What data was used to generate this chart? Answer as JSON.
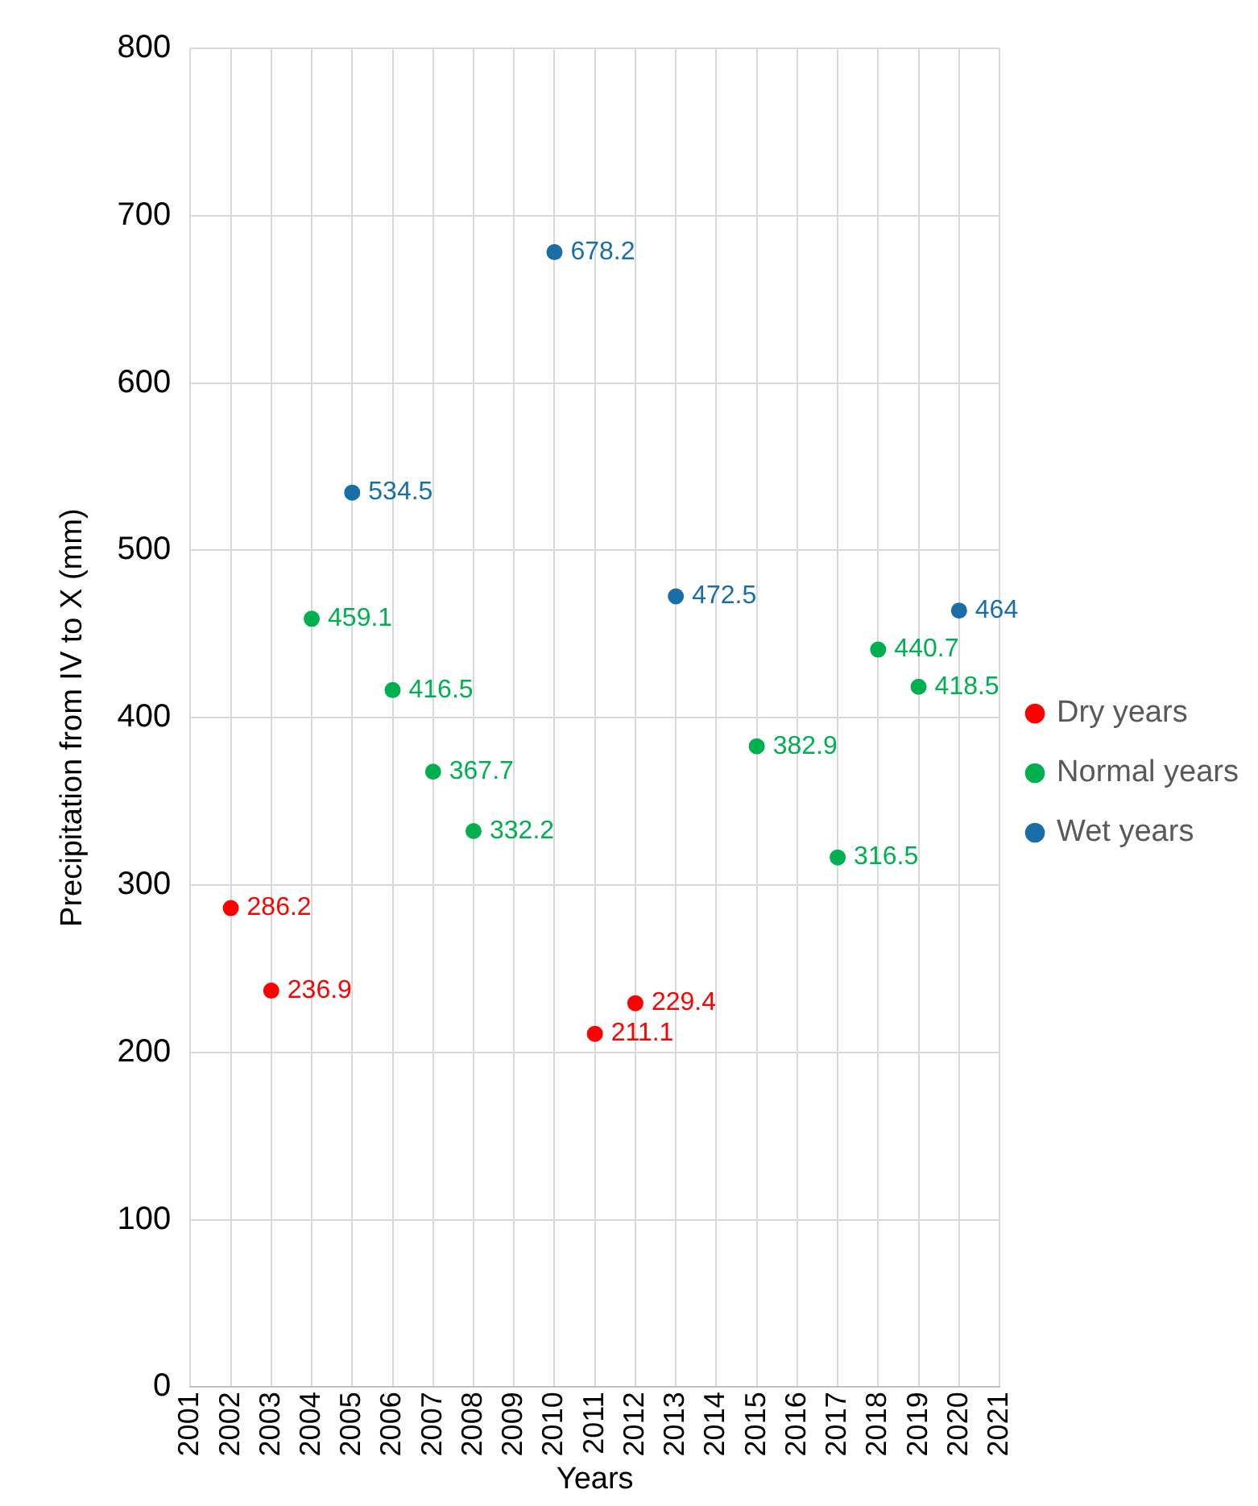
{
  "chart_data": {
    "type": "scatter",
    "xlabel": "Years",
    "ylabel": "Precipitation from IV to X (mm)",
    "xlim": [
      2001,
      2021
    ],
    "xticks": [
      2001,
      2002,
      2003,
      2004,
      2005,
      2006,
      2007,
      2008,
      2009,
      2010,
      2011,
      2012,
      2013,
      2014,
      2015,
      2016,
      2017,
      2018,
      2019,
      2020,
      2021
    ],
    "ylim": [
      0,
      800
    ],
    "yticks": [
      0,
      100,
      200,
      300,
      400,
      500,
      600,
      700,
      800
    ],
    "grid": true,
    "legend": "right",
    "marker": "circle",
    "data_labels": true,
    "series": [
      {
        "name": "Dry years",
        "color": "#ff0000",
        "x": [
          2002,
          2003,
          2011,
          2012
        ],
        "values": [
          286.2,
          236.9,
          211.1,
          229.4
        ]
      },
      {
        "name": "Normal years",
        "color": "#00b050",
        "x": [
          2004,
          2006,
          2007,
          2008,
          2015,
          2017,
          2018,
          2019
        ],
        "values": [
          459.1,
          416.5,
          367.7,
          332.2,
          382.9,
          316.5,
          440.7,
          418.5
        ]
      },
      {
        "name": "Wet years",
        "color": "#1a6ea8",
        "x": [
          2005,
          2010,
          2013,
          2020
        ],
        "values": [
          534.5,
          678.2,
          472.5,
          464
        ]
      }
    ]
  }
}
